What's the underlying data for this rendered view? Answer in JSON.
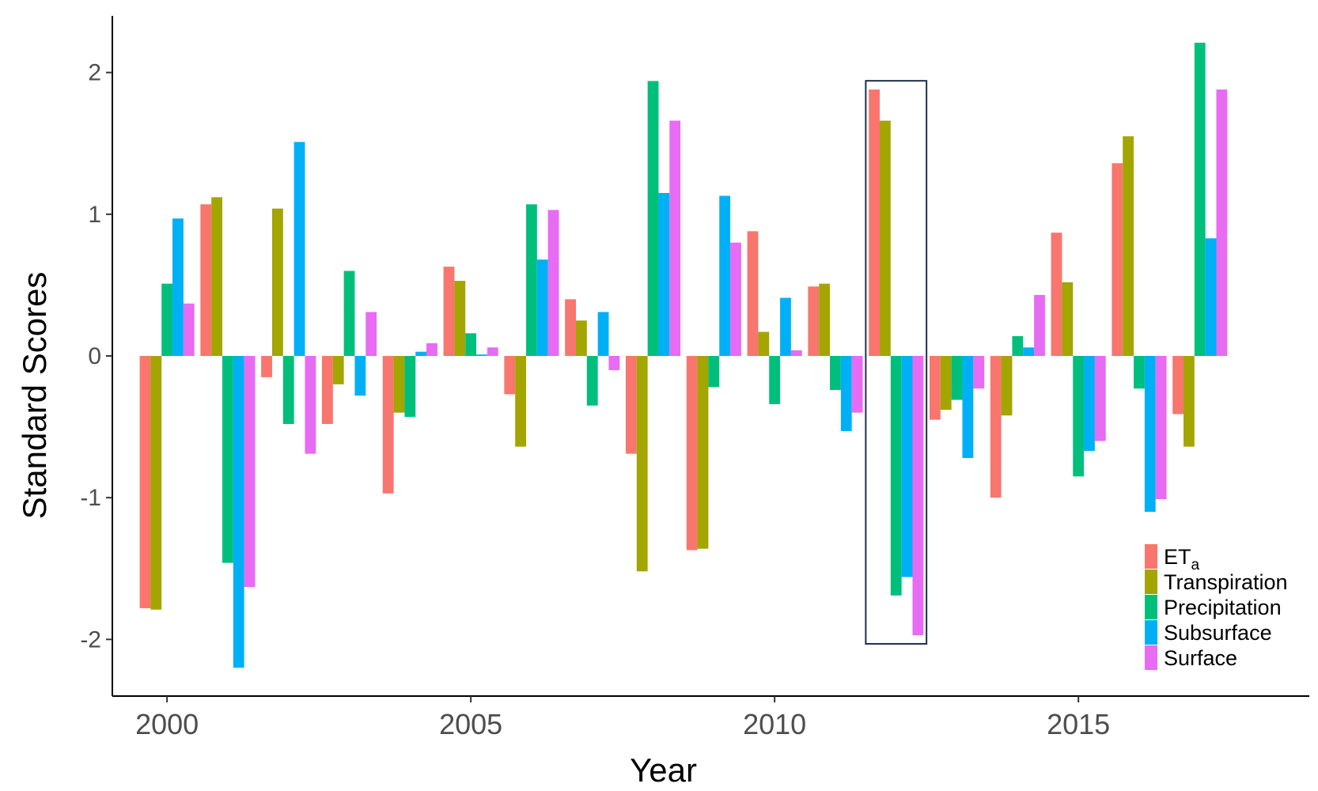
{
  "chart_data": {
    "type": "bar",
    "title": "",
    "xlabel": "Year",
    "ylabel": "Standard Scores",
    "x": [
      2000,
      2001,
      2002,
      2003,
      2004,
      2005,
      2006,
      2007,
      2008,
      2009,
      2010,
      2011,
      2012,
      2013,
      2014,
      2015,
      2016,
      2017
    ],
    "xticks": [
      2000,
      2005,
      2010,
      2015
    ],
    "xtick_labels": [
      "2000",
      "2005",
      "2010",
      "2015"
    ],
    "xlim": [
      1999.1,
      2018.8
    ],
    "ylim": [
      -2.4,
      2.4
    ],
    "yticks": [
      -2,
      -1,
      0,
      1,
      2
    ],
    "ytick_labels": [
      "-2",
      "-1",
      "0",
      "1",
      "2"
    ],
    "grid": false,
    "legend_position": "bottom-right",
    "highlight": {
      "x": 2012,
      "label": ""
    },
    "series": [
      {
        "name": "ET",
        "subscript": "a",
        "color": "#f8766d",
        "values": [
          -1.78,
          1.07,
          -0.15,
          -0.48,
          -0.97,
          0.63,
          -0.27,
          0.4,
          -0.69,
          -1.37,
          0.88,
          0.49,
          1.88,
          -0.45,
          -1.0,
          0.87,
          1.36,
          -0.41
        ]
      },
      {
        "name": "Transpiration",
        "subscript": "",
        "color": "#a3a500",
        "values": [
          -1.79,
          1.12,
          1.04,
          -0.2,
          -0.4,
          0.53,
          -0.64,
          0.25,
          -1.52,
          -1.36,
          0.17,
          0.51,
          1.66,
          -0.38,
          -0.42,
          0.52,
          1.55,
          -0.64
        ]
      },
      {
        "name": "Precipitation",
        "subscript": "",
        "color": "#00bf7d",
        "values": [
          0.51,
          -1.46,
          -0.48,
          0.6,
          -0.43,
          0.16,
          1.07,
          -0.35,
          1.94,
          -0.22,
          -0.34,
          -0.24,
          -1.69,
          -0.31,
          0.14,
          -0.85,
          -0.23,
          2.21
        ]
      },
      {
        "name": "Subsurface",
        "subscript": "",
        "color": "#00b0f6",
        "values": [
          0.97,
          -2.2,
          1.51,
          -0.28,
          0.03,
          0.01,
          0.68,
          0.31,
          1.15,
          1.13,
          0.41,
          -0.53,
          -1.56,
          -0.72,
          0.06,
          -0.67,
          -1.1,
          0.83
        ]
      },
      {
        "name": "Surface",
        "subscript": "",
        "color": "#e76bf3",
        "values": [
          0.37,
          -1.63,
          -0.69,
          0.31,
          0.09,
          0.06,
          1.03,
          -0.1,
          1.66,
          0.8,
          0.04,
          -0.4,
          -1.97,
          -0.23,
          0.43,
          -0.6,
          -1.01,
          1.88
        ]
      }
    ]
  }
}
